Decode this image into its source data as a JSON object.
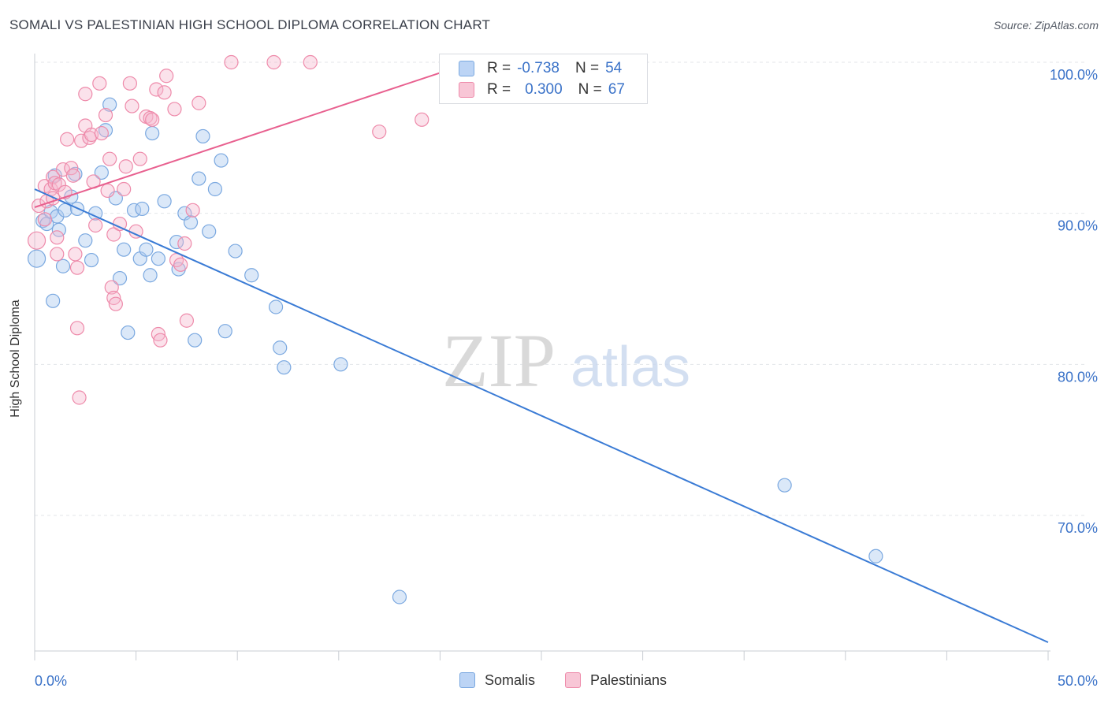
{
  "title": "SOMALI VS PALESTINIAN HIGH SCHOOL DIPLOMA CORRELATION CHART",
  "source": "Source: ZipAtlas.com",
  "watermark": {
    "zip": "ZIP",
    "atlas": "atlas"
  },
  "legend": {
    "r_label": "R =",
    "n_label": "N =",
    "rows": [
      {
        "series": "Somalis",
        "r": "-0.738",
        "n": "54",
        "color": "#7aa8e0"
      },
      {
        "series": "Palestinians",
        "r": "0.300",
        "n": "67",
        "color": "#ee8aaa"
      }
    ]
  },
  "bottom_legend": {
    "somalis": "Somalis",
    "palestinians": "Palestinians"
  },
  "chart_data": {
    "type": "scatter",
    "title": "SOMALI VS PALESTINIAN HIGH SCHOOL DIPLOMA CORRELATION CHART",
    "xlabel": "",
    "ylabel": "High School Diploma",
    "xlim": [
      0,
      50
    ],
    "ylim": [
      61,
      101
    ],
    "x_tick_labels": [
      "0.0%",
      "50.0%"
    ],
    "y_ticks": [
      70,
      80,
      90,
      100
    ],
    "y_tick_labels": [
      "70.0%",
      "80.0%",
      "90.0%",
      "100.0%"
    ],
    "grid": true,
    "series": [
      {
        "name": "Somalis",
        "color": "#7aa8e0",
        "line_color": "#3a7bd5",
        "trend": {
          "x": [
            0,
            50
          ],
          "y": [
            91.6,
            61.6
          ]
        },
        "points": [
          [
            0.1,
            87
          ],
          [
            0.4,
            89.5
          ],
          [
            0.6,
            89.3
          ],
          [
            0.8,
            90.1
          ],
          [
            0.9,
            84.2
          ],
          [
            1.0,
            92.5
          ],
          [
            1.1,
            89.8
          ],
          [
            1.2,
            88.9
          ],
          [
            1.4,
            86.5
          ],
          [
            1.5,
            90.2
          ],
          [
            1.8,
            91.1
          ],
          [
            2.0,
            92.6
          ],
          [
            2.1,
            90.3
          ],
          [
            2.5,
            88.2
          ],
          [
            2.8,
            86.9
          ],
          [
            3.0,
            90.0
          ],
          [
            3.3,
            92.7
          ],
          [
            3.5,
            95.5
          ],
          [
            3.7,
            97.2
          ],
          [
            4.0,
            91.0
          ],
          [
            4.2,
            85.7
          ],
          [
            4.4,
            87.6
          ],
          [
            4.6,
            82.1
          ],
          [
            4.9,
            90.2
          ],
          [
            5.2,
            87.0
          ],
          [
            5.3,
            90.3
          ],
          [
            5.5,
            87.6
          ],
          [
            5.7,
            85.9
          ],
          [
            5.8,
            95.3
          ],
          [
            6.1,
            87.0
          ],
          [
            6.4,
            90.8
          ],
          [
            7.0,
            88.1
          ],
          [
            7.1,
            86.3
          ],
          [
            7.4,
            90.0
          ],
          [
            7.7,
            89.4
          ],
          [
            7.9,
            81.6
          ],
          [
            8.1,
            92.3
          ],
          [
            8.3,
            95.1
          ],
          [
            8.6,
            88.8
          ],
          [
            8.9,
            91.6
          ],
          [
            9.2,
            93.5
          ],
          [
            9.4,
            82.2
          ],
          [
            9.9,
            87.5
          ],
          [
            10.7,
            85.9
          ],
          [
            11.9,
            83.8
          ],
          [
            12.1,
            81.1
          ],
          [
            12.3,
            79.8
          ],
          [
            15.1,
            80.0
          ],
          [
            18.0,
            64.6
          ],
          [
            37.0,
            72.0
          ],
          [
            41.5,
            67.3
          ]
        ]
      },
      {
        "name": "Palestinians",
        "color": "#ee8aaa",
        "line_color": "#e8608f",
        "trend": {
          "x": [
            0,
            20
          ],
          "y": [
            90.4,
            99.3
          ]
        },
        "points": [
          [
            0.1,
            88.2
          ],
          [
            0.2,
            90.5
          ],
          [
            0.5,
            89.6
          ],
          [
            0.5,
            91.8
          ],
          [
            0.6,
            90.8
          ],
          [
            0.8,
            91.6
          ],
          [
            0.9,
            92.4
          ],
          [
            0.9,
            91.0
          ],
          [
            1.0,
            92.0
          ],
          [
            1.1,
            88.4
          ],
          [
            1.1,
            87.3
          ],
          [
            1.2,
            91.9
          ],
          [
            1.4,
            92.9
          ],
          [
            1.5,
            91.4
          ],
          [
            1.6,
            94.9
          ],
          [
            1.8,
            93.0
          ],
          [
            1.9,
            92.5
          ],
          [
            2.0,
            87.3
          ],
          [
            2.1,
            86.4
          ],
          [
            2.1,
            82.4
          ],
          [
            2.2,
            77.8
          ],
          [
            2.3,
            94.8
          ],
          [
            2.5,
            97.9
          ],
          [
            2.5,
            95.8
          ],
          [
            2.7,
            95.0
          ],
          [
            2.8,
            95.2
          ],
          [
            2.9,
            92.1
          ],
          [
            3.0,
            89.2
          ],
          [
            3.2,
            98.6
          ],
          [
            3.3,
            95.3
          ],
          [
            3.5,
            96.5
          ],
          [
            3.6,
            91.5
          ],
          [
            3.7,
            93.6
          ],
          [
            3.8,
            85.1
          ],
          [
            3.9,
            84.4
          ],
          [
            3.9,
            88.6
          ],
          [
            4.0,
            84.0
          ],
          [
            4.2,
            89.3
          ],
          [
            4.4,
            91.6
          ],
          [
            4.5,
            93.1
          ],
          [
            4.7,
            98.6
          ],
          [
            4.8,
            97.1
          ],
          [
            5.0,
            88.8
          ],
          [
            5.2,
            93.6
          ],
          [
            5.5,
            96.4
          ],
          [
            5.7,
            96.3
          ],
          [
            5.8,
            96.2
          ],
          [
            6.0,
            98.2
          ],
          [
            6.1,
            82.0
          ],
          [
            6.2,
            81.6
          ],
          [
            6.4,
            98.0
          ],
          [
            6.5,
            99.1
          ],
          [
            6.9,
            96.9
          ],
          [
            7.0,
            86.9
          ],
          [
            7.2,
            86.6
          ],
          [
            7.4,
            88.0
          ],
          [
            7.5,
            82.9
          ],
          [
            7.8,
            90.2
          ],
          [
            8.1,
            97.3
          ],
          [
            9.7,
            100.0
          ],
          [
            11.8,
            100.0
          ],
          [
            13.6,
            100.0
          ],
          [
            17.0,
            95.4
          ],
          [
            19.1,
            96.2
          ]
        ]
      }
    ]
  }
}
